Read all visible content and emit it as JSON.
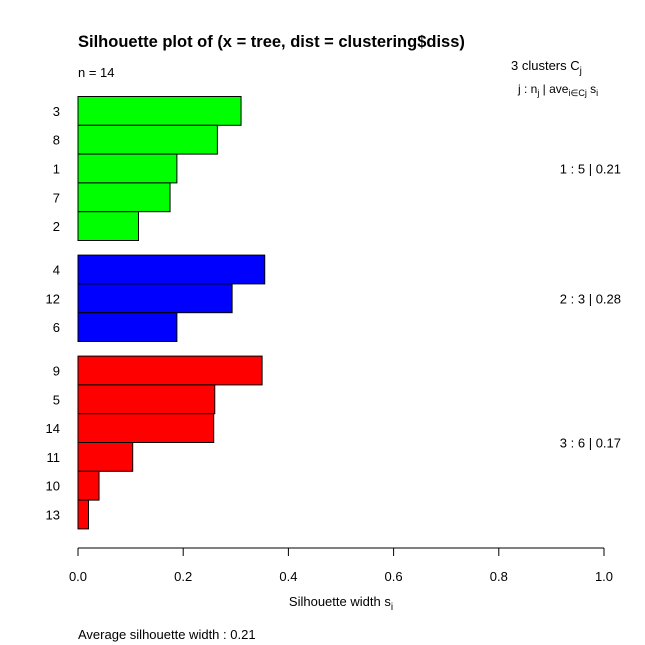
{
  "chart_data": {
    "type": "bar",
    "orientation": "horizontal",
    "title": "Silhouette plot of (x = tree, dist = clustering$diss)",
    "n_label": "n = 14",
    "header_line1": "3  clusters  C",
    "header_line1_sub": "j",
    "header_line2_parts": {
      "j": "j :  n",
      "j_sub": "j",
      "sep": " | ave",
      "ave_sub": "i∈Cj",
      "s": "  s",
      "s_sub": "i"
    },
    "xlabel": "Silhouette width s",
    "xlabel_sub": "i",
    "footer": "Average silhouette width :  0.21",
    "xlim": [
      0,
      1
    ],
    "xticks": [
      "0.0",
      "0.2",
      "0.4",
      "0.6",
      "0.8",
      "1.0"
    ],
    "clusters": [
      {
        "id": 1,
        "color": "#00ff00",
        "summary": "1 :   5  |  0.21",
        "observations": [
          {
            "label": "3",
            "value": 0.31
          },
          {
            "label": "8",
            "value": 0.265
          },
          {
            "label": "1",
            "value": 0.188
          },
          {
            "label": "7",
            "value": 0.175
          },
          {
            "label": "2",
            "value": 0.115
          }
        ]
      },
      {
        "id": 2,
        "color": "#0000ff",
        "summary": "2 :   3  |  0.28",
        "observations": [
          {
            "label": "4",
            "value": 0.355
          },
          {
            "label": "12",
            "value": 0.293
          },
          {
            "label": "6",
            "value": 0.188
          }
        ]
      },
      {
        "id": 3,
        "color": "#ff0000",
        "summary": "3 :   6  |  0.17",
        "observations": [
          {
            "label": "9",
            "value": 0.35
          },
          {
            "label": "5",
            "value": 0.26
          },
          {
            "label": "14",
            "value": 0.258
          },
          {
            "label": "11",
            "value": 0.104
          },
          {
            "label": "10",
            "value": 0.04
          },
          {
            "label": "13",
            "value": 0.02
          }
        ]
      }
    ]
  }
}
